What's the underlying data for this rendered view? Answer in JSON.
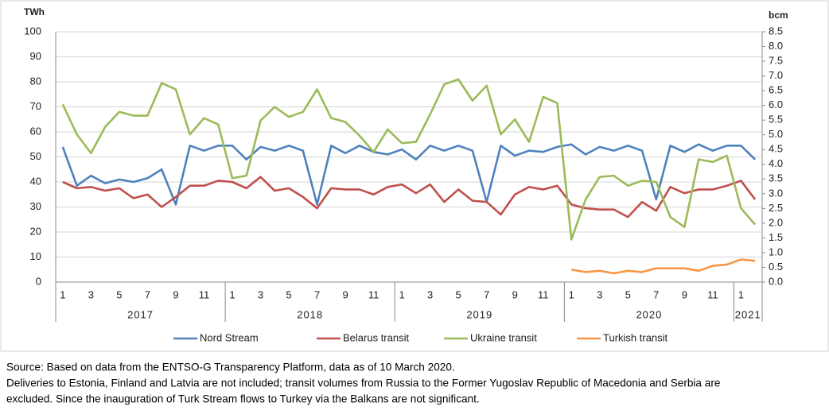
{
  "chart_data": {
    "type": "line",
    "y_unit": "TWh",
    "y2_unit": "bcm",
    "categories": [
      "1",
      null,
      "3",
      null,
      "5",
      null,
      "7",
      null,
      "9",
      null,
      "11",
      null,
      "1",
      null,
      "3",
      null,
      "5",
      null,
      "7",
      null,
      "9",
      null,
      "11",
      null,
      "1",
      null,
      "3",
      null,
      "5",
      null,
      "7",
      null,
      "9",
      null,
      "11",
      null,
      "1",
      null,
      "3",
      null,
      "5",
      null,
      "7",
      null,
      "9",
      null,
      "11",
      null,
      "1",
      null
    ],
    "groups": [
      "2017",
      "2018",
      "2019",
      "2020",
      "2021"
    ],
    "series": [
      {
        "name": "Nord Stream",
        "color": "#4f81bd",
        "values": [
          54,
          38.5,
          42.5,
          39.5,
          41,
          40,
          41.5,
          45,
          31,
          54.5,
          52.5,
          54.5,
          54.5,
          49,
          54,
          52.5,
          54.5,
          52.5,
          31,
          54.5,
          51.5,
          54.5,
          52,
          51,
          53,
          49,
          54.5,
          52.5,
          54.5,
          52.5,
          32,
          54.5,
          50.5,
          52.5,
          52,
          54,
          55,
          51,
          54,
          52.5,
          54.5,
          52.5,
          33,
          54.5,
          52,
          55,
          52.5,
          54.5,
          54.5,
          49
        ]
      },
      {
        "name": "Belarus transit",
        "color": "#c0504d",
        "values": [
          40,
          37.5,
          38,
          36.5,
          37.5,
          33.5,
          35,
          30,
          34,
          38.5,
          38.5,
          40.5,
          40,
          37.5,
          42,
          36.5,
          37.5,
          34,
          29.5,
          37.5,
          37,
          37,
          35,
          38,
          39,
          35.5,
          39,
          32,
          37,
          32.5,
          32,
          27,
          35,
          38,
          37,
          38.5,
          31,
          29.5,
          29,
          29,
          26,
          32,
          28.5,
          38,
          35.5,
          37,
          37,
          38.5,
          40.5,
          33
        ]
      },
      {
        "name": "Ukraine transit",
        "color": "#9bbb59",
        "values": [
          71,
          59,
          51.5,
          62,
          68,
          66.5,
          66.5,
          79.5,
          77,
          59,
          65.5,
          63,
          41.5,
          42.5,
          64.5,
          70,
          66,
          68,
          77,
          65.5,
          64,
          58.5,
          52,
          61,
          55.5,
          56,
          67,
          79,
          81,
          72.5,
          78.5,
          59,
          65,
          56,
          74,
          71.5,
          17,
          33,
          42,
          42.5,
          38.5,
          40.5,
          40,
          26,
          22,
          49,
          48,
          50.5,
          29.5,
          23
        ]
      },
      {
        "name": "Turkish transit",
        "color": "#f79646",
        "values": [
          null,
          null,
          null,
          null,
          null,
          null,
          null,
          null,
          null,
          null,
          null,
          null,
          null,
          null,
          null,
          null,
          null,
          null,
          null,
          null,
          null,
          null,
          null,
          null,
          null,
          null,
          null,
          null,
          null,
          null,
          null,
          null,
          null,
          null,
          null,
          null,
          5,
          4,
          4.5,
          3.5,
          4.5,
          4,
          5.5,
          5.5,
          5.5,
          4.5,
          6.5,
          7,
          9,
          8.5
        ]
      }
    ],
    "ylim": [
      0,
      100
    ],
    "yticks": [
      0,
      10,
      20,
      30,
      40,
      50,
      60,
      70,
      80,
      90,
      100
    ],
    "y2lim": [
      0,
      8.5
    ],
    "y2ticks": [
      {
        "value": 0,
        "label": "0.0"
      },
      0.5,
      {
        "value": 1,
        "label": "1.0"
      },
      1.5,
      {
        "value": 2,
        "label": "2.0"
      },
      2.5,
      {
        "value": 3,
        "label": "3.0"
      },
      3.5,
      {
        "value": 4,
        "label": "4.0"
      },
      4.5,
      {
        "value": 5,
        "label": "5.0"
      },
      5.5,
      {
        "value": 6,
        "label": "6.0"
      },
      6.5,
      {
        "value": 7,
        "label": "7.0"
      },
      7.5,
      {
        "value": 8,
        "label": "8.0"
      },
      8.5
    ],
    "grid": true,
    "legend": "bottom",
    "notes": [
      "Source: Based on data from the ENTSO-G Transparency Platform, data as of 10 March 2020.",
      "Deliveries to Estonia, Finland and Latvia are not included; transit volumes from Russia to the Former Yugoslav Republic of Macedonia and Serbia are",
      "excluded. Since the inauguration of Turk Stream flows to Turkey via the Balkans are not significant."
    ]
  }
}
